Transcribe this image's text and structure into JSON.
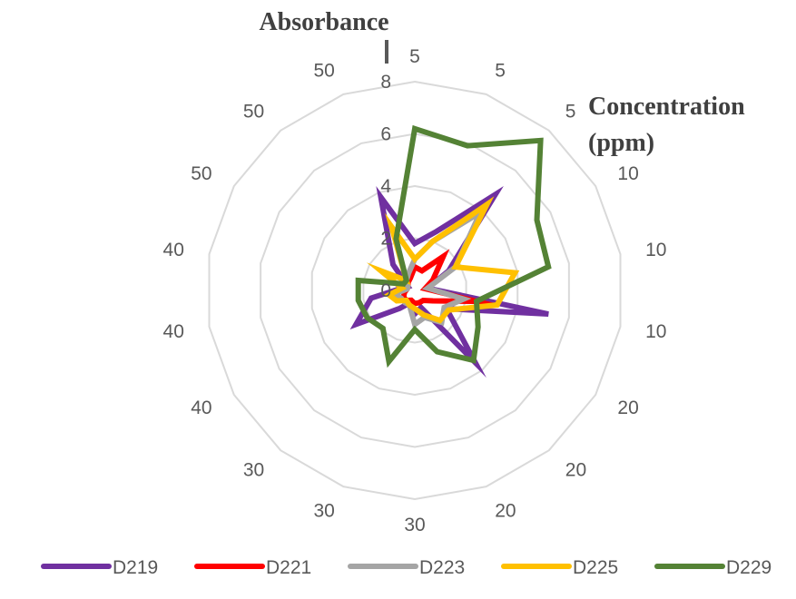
{
  "chart_data": {
    "type": "radar",
    "title": "",
    "radial_axis_title": "Absorbance",
    "category_axis_title": [
      "Concentration",
      "(ppm)"
    ],
    "radial_ticks": [
      "0",
      "2",
      "4",
      "6",
      "8"
    ],
    "rlim": [
      0,
      8
    ],
    "grid": true,
    "legend_position": "bottom",
    "categories": [
      "5",
      "5",
      "5",
      "10",
      "10",
      "10",
      "20",
      "20",
      "20",
      "30",
      "30",
      "30",
      "40",
      "40",
      "40",
      "50",
      "50",
      "50"
    ],
    "series": [
      {
        "name": "D219",
        "color": "#7030A0",
        "values": [
          1.8,
          2.4,
          4.8,
          1.5,
          0.5,
          5.2,
          1.4,
          3.6,
          0.7,
          0.9,
          0.5,
          0.9,
          2.6,
          1.7,
          0.5,
          0.3,
          1.3,
          3.8
        ]
      },
      {
        "name": "D221",
        "color": "#FF0000",
        "values": [
          0.9,
          0.8,
          1.7,
          0.8,
          0.4,
          2.4,
          0.8,
          0.5,
          0.5,
          0.5,
          0.4,
          0.5,
          0.5,
          0.4,
          0.3,
          0.3,
          0.4,
          0.5
        ]
      },
      {
        "name": "D223",
        "color": "#A5A5A5",
        "values": [
          1.2,
          2.0,
          3.9,
          1.8,
          0.5,
          1.9,
          1.3,
          1.6,
          1.1,
          1.3,
          0.6,
          0.6,
          0.6,
          0.8,
          0.3,
          0.3,
          0.5,
          0.7
        ]
      },
      {
        "name": "D225",
        "color": "#FFC000",
        "values": [
          1.2,
          2.0,
          4.3,
          1.8,
          3.9,
          3.2,
          1.5,
          1.5,
          1.0,
          0.7,
          0.6,
          0.5,
          0.8,
          1.0,
          0.5,
          1.5,
          0.5,
          2.6
        ]
      },
      {
        "name": "D229",
        "color": "#548235",
        "values": [
          6.2,
          5.9,
          7.5,
          5.4,
          5.2,
          2.4,
          2.8,
          3.5,
          2.5,
          1.5,
          2.9,
          1.9,
          2.1,
          2.2,
          2.2,
          0.5,
          0.5,
          2.1
        ]
      }
    ]
  }
}
